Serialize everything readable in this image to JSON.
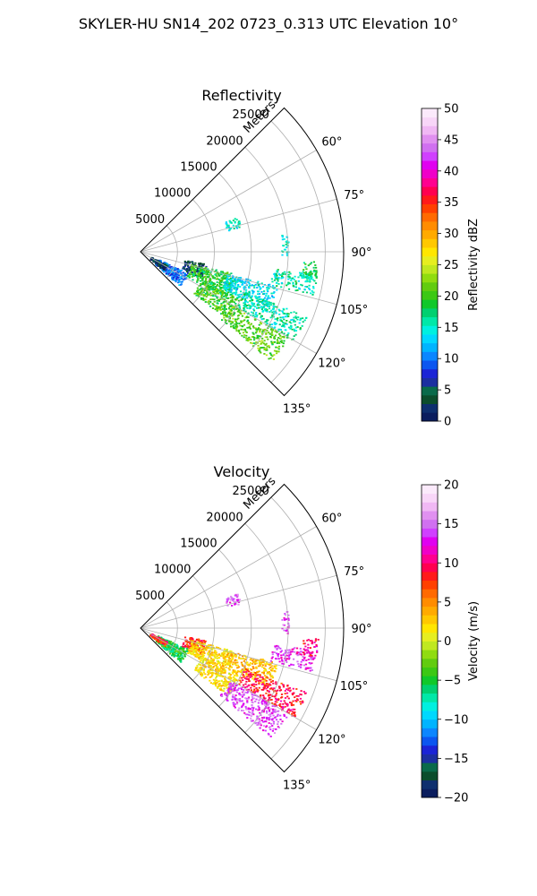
{
  "suptitle": "SKYLER-HU  SN14_202  0723_0.313 UTC Elevation 10°",
  "chart_data": [
    {
      "type": "heatmap",
      "subtype": "polar-sector-ppi",
      "title": "Reflectivity",
      "radial_label": "Meters",
      "radial_ticks": [
        5000,
        10000,
        15000,
        20000,
        25000
      ],
      "radial_tick_labels": [
        "5000",
        "10000",
        "15000",
        "20000",
        "25000"
      ],
      "rmax": 27500,
      "theta_range_deg": [
        45,
        135
      ],
      "angular_ticks": [
        60,
        75,
        90,
        105,
        120,
        135
      ],
      "angular_tick_labels": [
        "60°",
        "75°",
        "90°",
        "105°",
        "120°",
        "135°"
      ],
      "grid": true,
      "colorbar": {
        "label": "Reflectivity dBZ",
        "range": [
          0,
          50
        ],
        "ticks": [
          0,
          5,
          10,
          15,
          20,
          25,
          30,
          35,
          40,
          45,
          50
        ],
        "tick_labels": [
          "0",
          "5",
          "10",
          "15",
          "20",
          "25",
          "30",
          "35",
          "40",
          "45",
          "50"
        ],
        "colors": [
          "#0b1d5e",
          "#0e2f6e",
          "#0c4d2c",
          "#0a6a4a",
          "#1c2fa0",
          "#1b24d6",
          "#0b56f0",
          "#0b86ff",
          "#00b4ff",
          "#00d8ff",
          "#00f0e0",
          "#00e8a8",
          "#00d070",
          "#10c82a",
          "#3cc814",
          "#62cc10",
          "#90dc10",
          "#c0e820",
          "#e6ee20",
          "#ffe600",
          "#ffc800",
          "#ffaa00",
          "#ff8c00",
          "#ff6a00",
          "#ff4000",
          "#ff1a1a",
          "#ff0050",
          "#ff0090",
          "#f000c8",
          "#e000f0",
          "#d040ff",
          "#d070f0",
          "#e090f0",
          "#f0b8f4",
          "#f8d6f8",
          "#fbeafb"
        ]
      },
      "regions": [
        {
          "theta": [
            113,
            131
          ],
          "r": [
            2500,
            7000
          ],
          "value": 10
        },
        {
          "theta": [
            116,
            128
          ],
          "r": [
            1500,
            4000
          ],
          "value": 2
        },
        {
          "theta": [
            100,
            113
          ],
          "r": [
            6000,
            9000
          ],
          "value": 4
        },
        {
          "theta": [
            103,
            118
          ],
          "r": [
            7000,
            13000
          ],
          "value": 19
        },
        {
          "theta": [
            104,
            115
          ],
          "r": [
            12000,
            19000
          ],
          "value": 14
        },
        {
          "theta": [
            115,
            128
          ],
          "r": [
            9000,
            15000
          ],
          "value": 20
        },
        {
          "theta": [
            111,
            120
          ],
          "r": [
            15000,
            24000
          ],
          "value": 16
        },
        {
          "theta": [
            120,
            130
          ],
          "r": [
            14000,
            23000
          ],
          "value": 21
        },
        {
          "theta": [
            97,
            104
          ],
          "r": [
            18000,
            24000
          ],
          "value": 16
        },
        {
          "theta": [
            83,
            92
          ],
          "r": [
            19000,
            20000
          ],
          "value": 15
        },
        {
          "theta": [
            93,
            99
          ],
          "r": [
            22000,
            24000
          ],
          "value": 18
        },
        {
          "theta": [
            70,
            76
          ],
          "r": [
            12000,
            14000
          ],
          "value": 15
        }
      ]
    },
    {
      "type": "heatmap",
      "subtype": "polar-sector-ppi",
      "title": "Velocity",
      "radial_label": "Meters",
      "radial_ticks": [
        5000,
        10000,
        15000,
        20000,
        25000
      ],
      "radial_tick_labels": [
        "5000",
        "10000",
        "15000",
        "20000",
        "25000"
      ],
      "rmax": 27500,
      "theta_range_deg": [
        45,
        135
      ],
      "angular_ticks": [
        60,
        75,
        90,
        105,
        120,
        135
      ],
      "angular_tick_labels": [
        "60°",
        "75°",
        "90°",
        "105°",
        "120°",
        "135°"
      ],
      "grid": true,
      "colorbar": {
        "label": "Velocity (m/s)",
        "range": [
          -20,
          20
        ],
        "ticks": [
          -20,
          -15,
          -10,
          -5,
          0,
          5,
          10,
          15,
          20
        ],
        "tick_labels": [
          "−20",
          "−15",
          "−10",
          "−5",
          "0",
          "5",
          "10",
          "15",
          "20"
        ],
        "colors": [
          "#0b1d5e",
          "#0e2f6e",
          "#0c4d2c",
          "#0a6a4a",
          "#1c2fa0",
          "#1b24d6",
          "#0b56f0",
          "#0b86ff",
          "#00b4ff",
          "#00d8ff",
          "#00f0e0",
          "#00e8a8",
          "#00d070",
          "#10c82a",
          "#3cc814",
          "#62cc10",
          "#90dc10",
          "#c0e820",
          "#e6ee20",
          "#ffe600",
          "#ffc800",
          "#ffaa00",
          "#ff8c00",
          "#ff6a00",
          "#ff4000",
          "#ff1a1a",
          "#ff0050",
          "#ff0090",
          "#f000c8",
          "#e000f0",
          "#d040ff",
          "#d070f0",
          "#e090f0",
          "#f0b8f4",
          "#f8d6f8",
          "#fbeafb"
        ]
      },
      "regions": [
        {
          "theta": [
            113,
            131
          ],
          "r": [
            2500,
            7000
          ],
          "value": -5
        },
        {
          "theta": [
            116,
            128
          ],
          "r": [
            1500,
            4000
          ],
          "value": 8
        },
        {
          "theta": [
            100,
            113
          ],
          "r": [
            6000,
            9000
          ],
          "value": 8
        },
        {
          "theta": [
            103,
            118
          ],
          "r": [
            7000,
            13000
          ],
          "value": 2
        },
        {
          "theta": [
            104,
            115
          ],
          "r": [
            12000,
            19000
          ],
          "value": 3
        },
        {
          "theta": [
            115,
            128
          ],
          "r": [
            9000,
            15000
          ],
          "value": 2
        },
        {
          "theta": [
            111,
            120
          ],
          "r": [
            15000,
            24000
          ],
          "value": 9
        },
        {
          "theta": [
            120,
            130
          ],
          "r": [
            14000,
            23000
          ],
          "value": 14
        },
        {
          "theta": [
            97,
            104
          ],
          "r": [
            18000,
            24000
          ],
          "value": 13
        },
        {
          "theta": [
            83,
            92
          ],
          "r": [
            19000,
            20000
          ],
          "value": 14
        },
        {
          "theta": [
            93,
            99
          ],
          "r": [
            22000,
            24000
          ],
          "value": 10
        },
        {
          "theta": [
            70,
            76
          ],
          "r": [
            12000,
            14000
          ],
          "value": 14
        }
      ]
    }
  ]
}
